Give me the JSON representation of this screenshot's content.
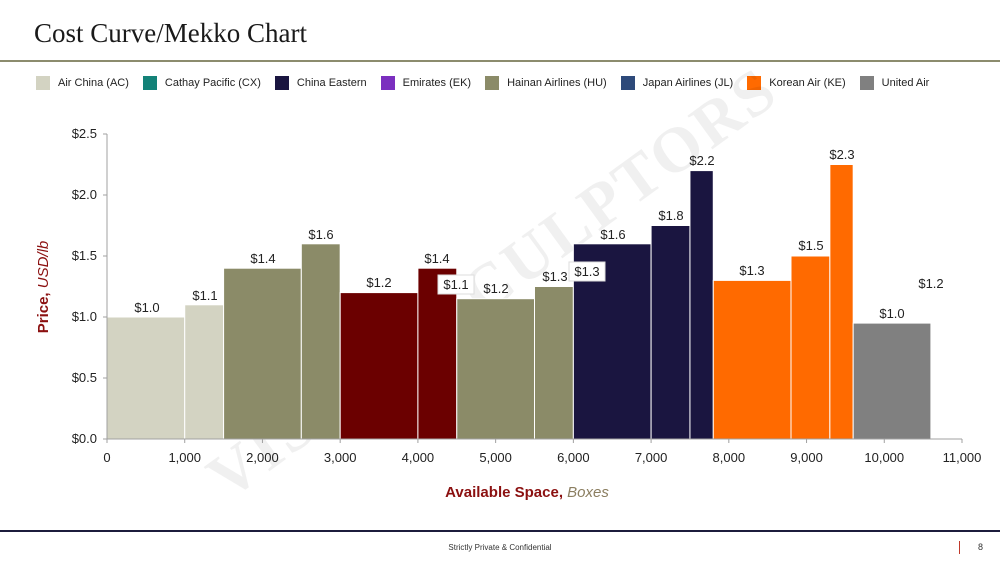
{
  "header": {
    "title": "Cost Curve/Mekko Chart"
  },
  "legend": {
    "items": [
      {
        "label": "Air China (AC)",
        "color": "#d3d3c2"
      },
      {
        "label": "Cathay Pacific (CX)",
        "color": "#138278"
      },
      {
        "label": "China Eastern",
        "color": "#1a1540"
      },
      {
        "label": "Emirates (EK)",
        "color": "#7b2fbf"
      },
      {
        "label": "Hainan Airlines (HU)",
        "color": "#8b8b68"
      },
      {
        "label": "Japan Airlines (JL)",
        "color": "#2e4a7a"
      },
      {
        "label": "Korean Air (KE)",
        "color": "#ff6a00"
      },
      {
        "label": "United Air",
        "color": "#808080"
      }
    ]
  },
  "watermark": "VISUAL SCULPTORS",
  "chart_data": {
    "type": "bar",
    "subtype": "mekko-cost-curve",
    "ylim": [
      0,
      2.5
    ],
    "xlim": [
      0,
      11000
    ],
    "y_ticks": [
      "$0.0",
      "$0.5",
      "$1.0",
      "$1.5",
      "$2.0",
      "$2.5"
    ],
    "y_tick_values": [
      0,
      0.5,
      1.0,
      1.5,
      2.0,
      2.5
    ],
    "x_ticks": [
      "0",
      "1,000",
      "2,000",
      "3,000",
      "4,000",
      "5,000",
      "6,000",
      "7,000",
      "8,000",
      "9,000",
      "10,000",
      "11,000"
    ],
    "x_tick_values": [
      0,
      1000,
      2000,
      3000,
      4000,
      5000,
      6000,
      7000,
      8000,
      9000,
      10000,
      11000
    ],
    "ylabel_main": "Price,",
    "ylabel_unit": "USD/lb",
    "xlabel_main": "Available Space,",
    "xlabel_unit": "Boxes",
    "bars": [
      {
        "series": "Air China (AC)",
        "x_start": 0,
        "x_end": 1000,
        "value": 1.0,
        "label": "$1.0",
        "color": "#d3d3c2"
      },
      {
        "series": "Air China (AC)",
        "x_start": 1000,
        "x_end": 1500,
        "value": 1.1,
        "label": "$1.1",
        "color": "#d3d3c2"
      },
      {
        "series": "Hainan Airlines (HU)",
        "x_start": 1500,
        "x_end": 2500,
        "value": 1.4,
        "label": "$1.4",
        "color": "#8b8b68"
      },
      {
        "series": "Hainan Airlines (HU)",
        "x_start": 2500,
        "x_end": 3000,
        "value": 1.6,
        "label": "$1.6",
        "color": "#8b8b68"
      },
      {
        "series": "",
        "x_start": 3000,
        "x_end": 4000,
        "value": 1.2,
        "label": "$1.2",
        "color": "#6b0000"
      },
      {
        "series": "",
        "x_start": 4000,
        "x_end": 4500,
        "value": 1.4,
        "label": "$1.4",
        "color": "#6b0000"
      },
      {
        "series": "Hainan Airlines (HU)",
        "x_start": 4500,
        "x_end": 5500,
        "value": 1.15,
        "label": "$1.2",
        "color": "#8b8b68"
      },
      {
        "series": "Hainan Airlines (HU)",
        "x_start": 5500,
        "x_end": 6000,
        "value": 1.25,
        "label": "$1.3",
        "color": "#8b8b68"
      },
      {
        "series": "China Eastern",
        "x_start": 6000,
        "x_end": 7000,
        "value": 1.6,
        "label": "$1.6",
        "color": "#1a1540"
      },
      {
        "series": "China Eastern",
        "x_start": 7000,
        "x_end": 7500,
        "value": 1.75,
        "label": "$1.8",
        "color": "#1a1540"
      },
      {
        "series": "China Eastern",
        "x_start": 7500,
        "x_end": 7800,
        "value": 2.2,
        "label": "$2.2",
        "color": "#1a1540"
      },
      {
        "series": "Korean Air (KE)",
        "x_start": 7800,
        "x_end": 8800,
        "value": 1.3,
        "label": "$1.3",
        "color": "#ff6a00"
      },
      {
        "series": "Korean Air (KE)",
        "x_start": 8800,
        "x_end": 9300,
        "value": 1.5,
        "label": "$1.5",
        "color": "#ff6a00"
      },
      {
        "series": "Korean Air (KE)",
        "x_start": 9300,
        "x_end": 9600,
        "value": 2.25,
        "label": "$2.3",
        "color": "#ff6a00"
      },
      {
        "series": "United Air",
        "x_start": 9600,
        "x_end": 10600,
        "value": 0.95,
        "label": "$1.0",
        "color": "#808080"
      }
    ],
    "extra_labels": [
      "$1.1",
      "$1.3",
      "$1.2"
    ]
  },
  "footer": {
    "text": "Strictly Private & Confidential",
    "page": "8"
  }
}
